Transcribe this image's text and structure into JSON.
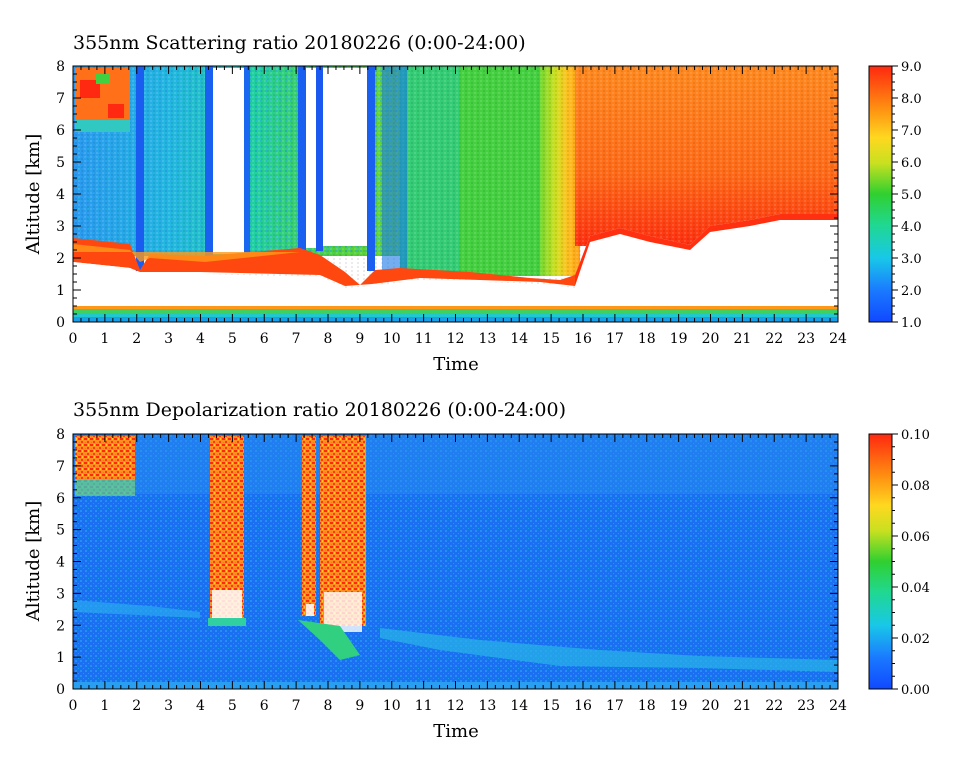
{
  "chart_data": [
    {
      "type": "heatmap",
      "title": "355nm Scattering ratio  20180226 (0:00-24:00)",
      "xlabel": "Time",
      "ylabel": "Altitude [km]",
      "x_ticks": [
        "0",
        "1",
        "2",
        "3",
        "4",
        "5",
        "6",
        "7",
        "8",
        "9",
        "10",
        "11",
        "12",
        "13",
        "14",
        "15",
        "16",
        "17",
        "18",
        "19",
        "20",
        "21",
        "22",
        "23",
        "24"
      ],
      "y_ticks": [
        "0",
        "1",
        "2",
        "3",
        "4",
        "5",
        "6",
        "7",
        "8"
      ],
      "xlim": [
        0,
        24
      ],
      "ylim": [
        0,
        8
      ],
      "colorbar": {
        "range": [
          1.0,
          9.0
        ],
        "ticks": [
          "1.0",
          "2.0",
          "3.0",
          "4.0",
          "5.0",
          "6.0",
          "7.0",
          "8.0",
          "9.0"
        ]
      },
      "colors": {
        "low": "#1050ff",
        "mid": "#20d040",
        "high": "#ff2810",
        "missing": "#ffffff"
      }
    },
    {
      "type": "heatmap",
      "title": "355nm Depolarization ratio  20180226 (0:00-24:00)",
      "xlabel": "Time",
      "ylabel": "Altitude [km]",
      "x_ticks": [
        "0",
        "1",
        "2",
        "3",
        "4",
        "5",
        "6",
        "7",
        "8",
        "9",
        "10",
        "11",
        "12",
        "13",
        "14",
        "15",
        "16",
        "17",
        "18",
        "19",
        "20",
        "21",
        "22",
        "23",
        "24"
      ],
      "y_ticks": [
        "0",
        "1",
        "2",
        "3",
        "4",
        "5",
        "6",
        "7",
        "8"
      ],
      "xlim": [
        0,
        24
      ],
      "ylim": [
        0,
        8
      ],
      "colorbar": {
        "range": [
          0.0,
          0.1
        ],
        "ticks": [
          "0.00",
          "0.02",
          "0.04",
          "0.06",
          "0.08",
          "0.10"
        ]
      },
      "colors": {
        "low": "#1050ff",
        "mid": "#20d040",
        "high": "#ff2810",
        "missing": "#ffffff"
      }
    }
  ]
}
